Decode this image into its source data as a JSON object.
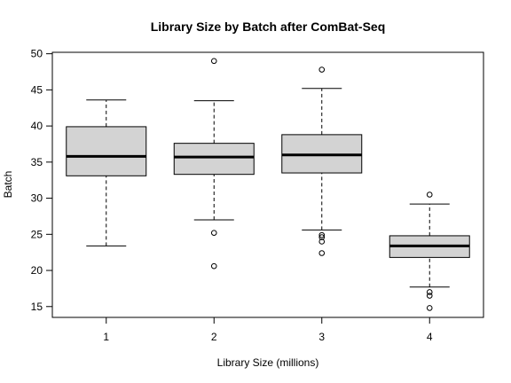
{
  "chart_data": {
    "type": "boxplot",
    "title": "Library Size by Batch after ComBat-Seq",
    "xlabel": "Library Size (millions)",
    "ylabel": "Batch",
    "ylim": [
      13.5,
      50.2
    ],
    "yticks": [
      15,
      20,
      25,
      30,
      35,
      40,
      45,
      50
    ],
    "categories": [
      "1",
      "2",
      "3",
      "4"
    ],
    "boxes": [
      {
        "category": "1",
        "whisker_low": 23.4,
        "q1": 33.1,
        "median": 35.8,
        "q3": 39.9,
        "whisker_high": 43.6,
        "outliers": []
      },
      {
        "category": "2",
        "whisker_low": 27.0,
        "q1": 33.3,
        "median": 35.7,
        "q3": 37.6,
        "whisker_high": 43.5,
        "outliers": [
          20.6,
          25.2,
          49.0
        ]
      },
      {
        "category": "3",
        "whisker_low": 25.6,
        "q1": 33.5,
        "median": 36.0,
        "q3": 38.8,
        "whisker_high": 45.2,
        "outliers": [
          22.4,
          24.0,
          24.6,
          24.9,
          47.8
        ]
      },
      {
        "category": "4",
        "whisker_low": 17.7,
        "q1": 21.8,
        "median": 23.4,
        "q3": 24.8,
        "whisker_high": 29.2,
        "outliers": [
          14.8,
          16.5,
          17.0,
          30.5
        ]
      }
    ],
    "box_fill": "#d3d3d3",
    "line_color": "#000000",
    "grid": false,
    "legend": "none"
  }
}
